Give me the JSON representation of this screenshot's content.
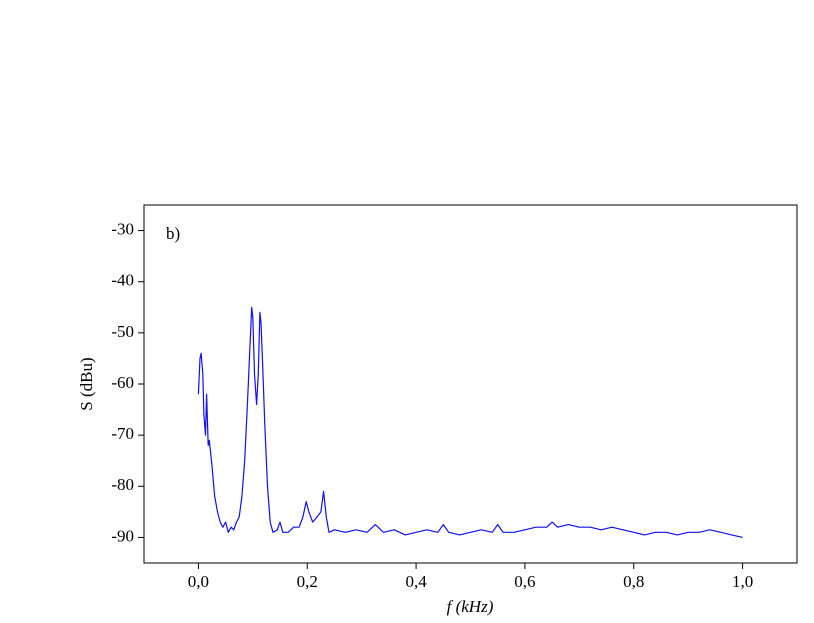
{
  "chart_data": {
    "type": "line",
    "annotation": "b)",
    "xlabel": "f (kHz)",
    "ylabel": "S (dBu)",
    "color": "#1010f0",
    "xlim": [
      -0.1,
      1.1
    ],
    "ylim": [
      -95,
      -25
    ],
    "xticks": [
      {
        "value": 0,
        "label": "0,0"
      },
      {
        "value": 0.2,
        "label": "0,2"
      },
      {
        "value": 0.4,
        "label": "0,4"
      },
      {
        "value": 0.6,
        "label": "0,6"
      },
      {
        "value": 0.8,
        "label": "0,8"
      },
      {
        "value": 1.0,
        "label": "1,0"
      }
    ],
    "yticks": [
      -90,
      -80,
      -70,
      -60,
      -50,
      -40,
      -30
    ],
    "x": [
      0.0,
      0.003,
      0.005,
      0.008,
      0.01,
      0.013,
      0.015,
      0.018,
      0.02,
      0.025,
      0.03,
      0.035,
      0.04,
      0.045,
      0.05,
      0.055,
      0.06,
      0.065,
      0.07,
      0.075,
      0.08,
      0.085,
      0.09,
      0.095,
      0.098,
      0.1,
      0.103,
      0.107,
      0.11,
      0.113,
      0.115,
      0.118,
      0.122,
      0.127,
      0.132,
      0.137,
      0.145,
      0.15,
      0.155,
      0.165,
      0.175,
      0.185,
      0.192,
      0.198,
      0.203,
      0.21,
      0.218,
      0.225,
      0.23,
      0.235,
      0.24,
      0.25,
      0.27,
      0.29,
      0.31,
      0.325,
      0.34,
      0.36,
      0.38,
      0.4,
      0.42,
      0.44,
      0.45,
      0.46,
      0.48,
      0.5,
      0.52,
      0.54,
      0.55,
      0.56,
      0.58,
      0.6,
      0.62,
      0.64,
      0.65,
      0.66,
      0.68,
      0.7,
      0.72,
      0.74,
      0.76,
      0.78,
      0.8,
      0.82,
      0.84,
      0.86,
      0.88,
      0.9,
      0.92,
      0.94,
      0.96,
      0.98,
      1.0
    ],
    "values": [
      -62,
      -55,
      -54,
      -58,
      -66,
      -70,
      -62,
      -72,
      -71,
      -76,
      -82,
      -85,
      -87,
      -88,
      -87,
      -89,
      -88,
      -88.5,
      -87,
      -86,
      -82,
      -75,
      -64,
      -52,
      -45,
      -47,
      -58,
      -64,
      -58,
      -46,
      -48,
      -56,
      -68,
      -80,
      -87,
      -89,
      -88.5,
      -87,
      -89,
      -89,
      -88,
      -88,
      -86,
      -83,
      -85,
      -87,
      -86,
      -85,
      -81,
      -86,
      -89,
      -88.5,
      -89,
      -88.5,
      -89,
      -87.5,
      -89,
      -88.5,
      -89.5,
      -89,
      -88.5,
      -89,
      -87.5,
      -89,
      -89.5,
      -89,
      -88.5,
      -89,
      -87.5,
      -89,
      -89,
      -88.5,
      -88,
      -88,
      -87,
      -88,
      -87.5,
      -88,
      -88,
      -88.5,
      -88,
      -88.5,
      -89,
      -89.5,
      -89,
      -89,
      -89.5,
      -89,
      -89,
      -88.5,
      -89,
      -89.5,
      -90
    ]
  }
}
